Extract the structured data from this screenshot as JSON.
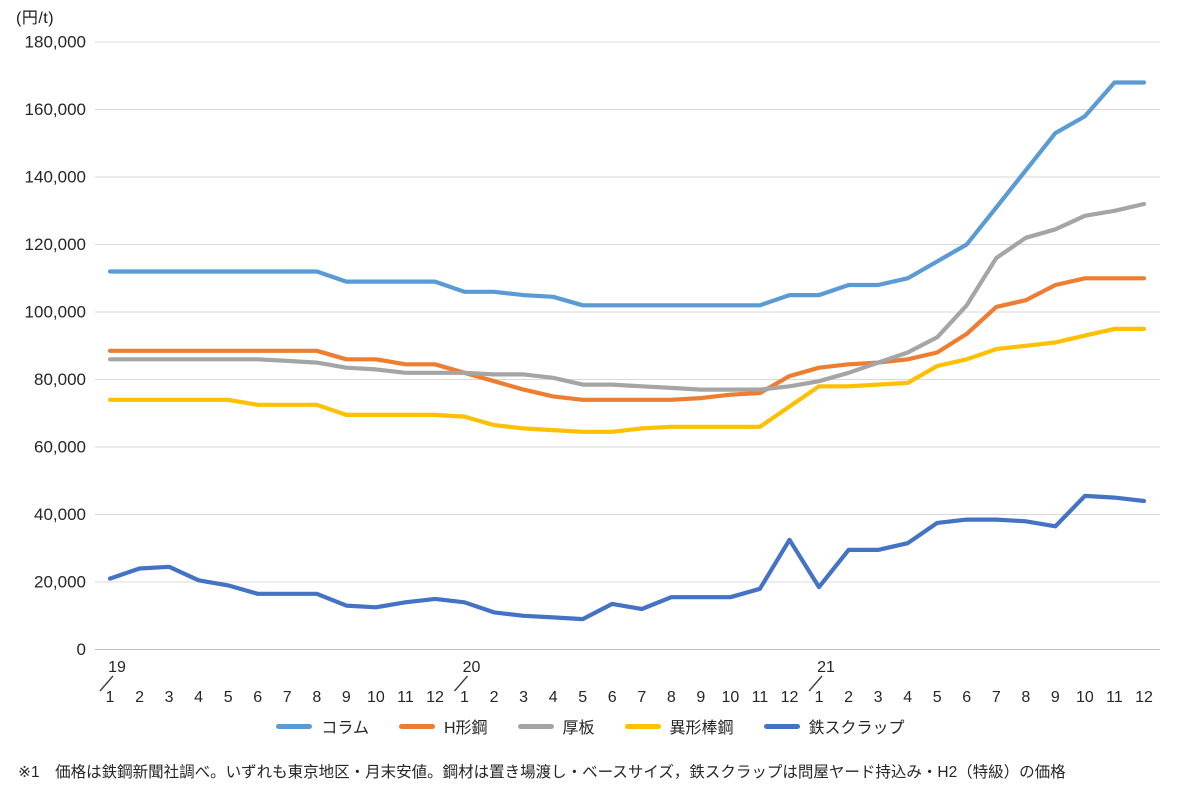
{
  "chart_data": {
    "type": "line",
    "title": "",
    "xlabel": "",
    "ylabel": "",
    "y_unit": "(円/t)",
    "ylim": [
      0,
      180000
    ],
    "y_tick_step": 20000,
    "grid": true,
    "legend_position": "bottom",
    "x_years": [
      "19",
      "20",
      "21"
    ],
    "x_month_labels": [
      "1",
      "2",
      "3",
      "4",
      "5",
      "6",
      "7",
      "8",
      "9",
      "10",
      "11",
      "12"
    ],
    "series": [
      {
        "key": "column",
        "name": "コラム",
        "color": "#5B9BD5",
        "values": [
          112000,
          112000,
          112000,
          112000,
          112000,
          112000,
          112000,
          112000,
          109000,
          109000,
          109000,
          109000,
          106000,
          106000,
          105000,
          104500,
          102000,
          102000,
          102000,
          102000,
          102000,
          102000,
          102000,
          105000,
          105000,
          108000,
          108000,
          110000,
          115000,
          120000,
          131000,
          142000,
          153000,
          158000,
          168000,
          168000
        ]
      },
      {
        "key": "h-beam",
        "name": "H形鋼",
        "color": "#ED7D31",
        "values": [
          88500,
          88500,
          88500,
          88500,
          88500,
          88500,
          88500,
          88500,
          86000,
          86000,
          84500,
          84500,
          82000,
          79500,
          77000,
          75000,
          74000,
          74000,
          74000,
          74000,
          74500,
          75500,
          76000,
          81000,
          83500,
          84500,
          85000,
          86000,
          88000,
          93500,
          101500,
          103500,
          108000,
          110000,
          110000,
          110000
        ]
      },
      {
        "key": "thick-plate",
        "name": "厚板",
        "color": "#A5A5A5",
        "values": [
          86000,
          86000,
          86000,
          86000,
          86000,
          86000,
          85500,
          85000,
          83500,
          83000,
          82000,
          82000,
          82000,
          81500,
          81500,
          80500,
          78500,
          78500,
          78000,
          77500,
          77000,
          77000,
          77000,
          78000,
          79500,
          82000,
          85000,
          88000,
          92500,
          102000,
          116000,
          122000,
          124500,
          128500,
          130000,
          132000
        ]
      },
      {
        "key": "deformed-bar",
        "name": "異形棒鋼",
        "color": "#FFC000",
        "values": [
          74000,
          74000,
          74000,
          74000,
          74000,
          72500,
          72500,
          72500,
          69500,
          69500,
          69500,
          69500,
          69000,
          66500,
          65500,
          65000,
          64500,
          64500,
          65500,
          66000,
          66000,
          66000,
          66000,
          72000,
          78000,
          78000,
          78500,
          79000,
          84000,
          86000,
          89000,
          90000,
          91000,
          93000,
          95000,
          95000
        ]
      },
      {
        "key": "iron-scrap",
        "name": "鉄スクラップ",
        "color": "#4472C4",
        "values": [
          21000,
          24000,
          24500,
          20500,
          19000,
          16500,
          16500,
          16500,
          13000,
          12500,
          14000,
          15000,
          14000,
          11000,
          10000,
          9500,
          9000,
          13500,
          12000,
          15500,
          15500,
          15500,
          18000,
          32500,
          18500,
          29500,
          29500,
          31500,
          37500,
          38500,
          38500,
          38000,
          36500,
          45500,
          45000,
          44000
        ]
      }
    ],
    "draw_order": [
      4,
      1,
      2,
      3,
      0
    ]
  },
  "footnote": "※1　価格は鉄鋼新聞社調べ。いずれも東京地区・月末安値。鋼材は置き場渡し・ベースサイズ，鉄スクラップは問屋ヤード持込み・H2（特級）の価格"
}
